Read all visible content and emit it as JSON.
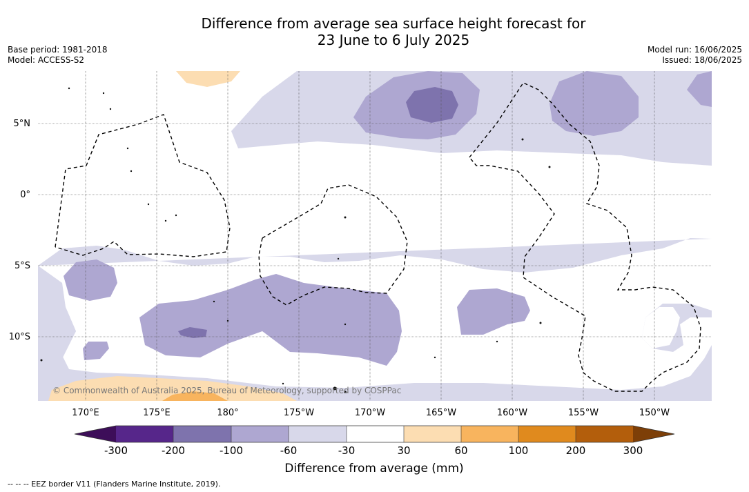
{
  "title": {
    "line1": "Difference from average sea surface height forecast for",
    "line2": "23 June to 6 July 2025"
  },
  "meta": {
    "base_period": "Base period: 1981-2018",
    "model": "Model: ACCESS-S2",
    "model_run": "Model run: 16/06/2025",
    "issued": "Issued: 18/06/2025"
  },
  "map": {
    "latitude_labels": [
      "5°N",
      "0°",
      "5°S",
      "10°S"
    ],
    "longitude_labels": [
      "170°E",
      "175°E",
      "180°",
      "175°W",
      "170°W",
      "165°W",
      "160°W",
      "155°W",
      "150°W"
    ],
    "copyright": "© Commonwealth of Australia 2025, Bureau of Meteorology, supported by COSPPac"
  },
  "colorbar": {
    "title": "Difference from average (mm)",
    "tick_labels": [
      "-300",
      "-200",
      "-100",
      "-60",
      "-30",
      "30",
      "60",
      "100",
      "200",
      "300"
    ],
    "colors": [
      "#3d0e59",
      "#56268a",
      "#7e73ad",
      "#aea7d1",
      "#d8d8ea",
      "#ffffff",
      "#fcddb2",
      "#f8b45e",
      "#e08a1e",
      "#b35e0c",
      "#7d3f08"
    ]
  },
  "footer": {
    "legend_note": "-- -- -- EEZ border V11 (Flanders Marine Institute, 2019)."
  }
}
